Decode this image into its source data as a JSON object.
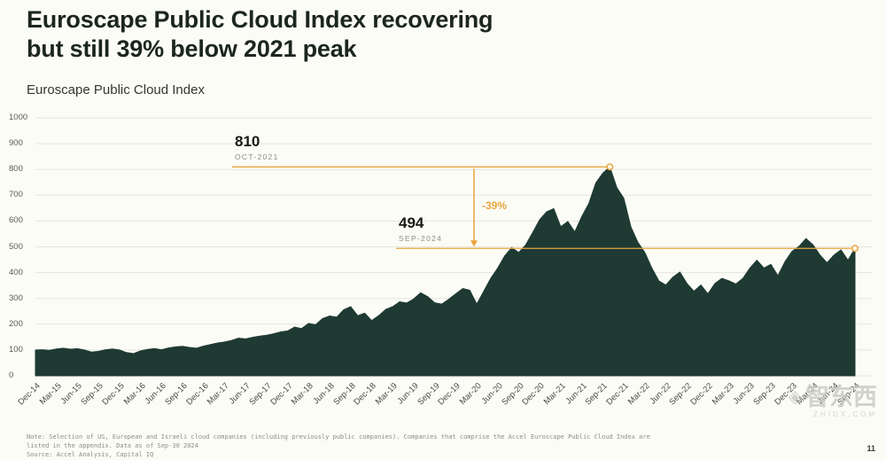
{
  "page": {
    "title_line1": "Euroscape Public Cloud Index recovering",
    "title_line2": "but still 39% below 2021 peak",
    "subtitle": "Euroscape Public Cloud Index",
    "note_line1": "Note: Selection of US, European and Israeli cloud companies (including previously public companies). Companies that comprise the Accel Euroscape Public Cloud Index are",
    "note_line2": "listed in the appendix. Data as of Sep-30 2024",
    "source": "Source: Accel Analysis, Capital IQ",
    "page_number": "11",
    "watermark_cn": "智东西",
    "watermark_en": "ZHIDX.COM"
  },
  "colors": {
    "area": "#1e3a33",
    "accent": "#e8a53f",
    "grid": "#e6e6df",
    "bg": "#fcfcf6",
    "axis_text": "#5c5c55"
  },
  "chart_data": {
    "type": "area",
    "title": "Euroscape Public Cloud Index",
    "xlabel": "",
    "ylabel": "",
    "ylim": [
      0,
      1000
    ],
    "grid": true,
    "legend_position": "none",
    "y_ticks": [
      0,
      100,
      200,
      300,
      400,
      500,
      600,
      700,
      800,
      900,
      1000
    ],
    "x_unit": "month",
    "x_start": "Dec-14",
    "x_end": "Sep-24",
    "x_tick_labels": [
      "Dec-14",
      "Mar-15",
      "Jun-15",
      "Sep-15",
      "Dec-15",
      "Mar-16",
      "Jun-16",
      "Sep-16",
      "Dec-16",
      "Mar-17",
      "Jun-17",
      "Sep-17",
      "Dec-17",
      "Mar-18",
      "Jun-18",
      "Sep-18",
      "Dec-18",
      "Mar-19",
      "Jun-19",
      "Sep-19",
      "Dec-19",
      "Mar-20",
      "Jun-20",
      "Sep-20",
      "Dec-20",
      "Mar-21",
      "Jun-21",
      "Sep-21",
      "Dec-21",
      "Mar-22",
      "Jun-22",
      "Sep-22",
      "Dec-22",
      "Mar-23",
      "Jun-23",
      "Sep-23",
      "Dec-23",
      "Mar-24",
      "Jun-24",
      "Sep-24"
    ],
    "x_ticks_every_n_points": 3,
    "values": [
      100,
      101,
      99,
      104,
      107,
      103,
      105,
      100,
      92,
      95,
      101,
      104,
      100,
      90,
      86,
      97,
      102,
      106,
      101,
      108,
      112,
      114,
      110,
      107,
      115,
      121,
      127,
      131,
      137,
      146,
      143,
      149,
      154,
      157,
      163,
      170,
      174,
      189,
      183,
      203,
      198,
      222,
      232,
      227,
      256,
      268,
      233,
      243,
      214,
      233,
      257,
      268,
      287,
      282,
      298,
      322,
      307,
      283,
      278,
      297,
      318,
      338,
      332,
      278,
      328,
      378,
      418,
      465,
      497,
      478,
      508,
      556,
      606,
      636,
      648,
      578,
      598,
      558,
      618,
      668,
      748,
      786,
      810,
      730,
      688,
      578,
      518,
      478,
      418,
      368,
      352,
      382,
      402,
      358,
      328,
      352,
      318,
      358,
      378,
      368,
      356,
      378,
      418,
      448,
      418,
      432,
      388,
      442,
      482,
      502,
      532,
      508,
      468,
      438,
      468,
      488,
      448,
      494
    ],
    "annotations": {
      "peak": {
        "label": "810",
        "sublabel": "OCT-2021",
        "value": 810,
        "index": 82
      },
      "current": {
        "label": "494",
        "sublabel": "SEP-2024",
        "value": 494,
        "index": 117
      },
      "delta_label": "-39%"
    }
  }
}
